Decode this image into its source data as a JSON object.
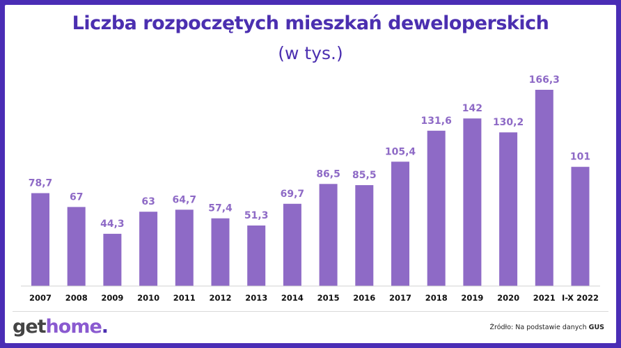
{
  "header": {
    "title": "Liczba rozpoczętych mieszkań deweloperskich",
    "subtitle": "(w tys.)"
  },
  "footer": {
    "logo_part1": "get",
    "logo_part2": "home",
    "logo_part3": ".",
    "source_prefix": "Źródło: Na podstawie danych",
    "source_org": "GUS"
  },
  "colors": {
    "bar": "#8e6ac6",
    "value_label": "#8e6ac6",
    "category_label": "#111111",
    "title": "#4b2fb0",
    "border": "#4a2db5"
  },
  "chart_data": {
    "type": "bar",
    "title": "Liczba rozpoczętych mieszkań deweloperskich",
    "subtitle": "(w tys.)",
    "categories": [
      "2007",
      "2008",
      "2009",
      "2010",
      "2011",
      "2012",
      "2013",
      "2014",
      "2015",
      "2016",
      "2017",
      "2018",
      "2019",
      "2020",
      "2021",
      "I-X 2022"
    ],
    "values": [
      78.7,
      67,
      44.3,
      63,
      64.7,
      57.4,
      51.3,
      69.7,
      86.5,
      85.5,
      105.4,
      131.6,
      142,
      130.2,
      166.3,
      101
    ],
    "value_labels": [
      "78,7",
      "67",
      "44,3",
      "63",
      "64,7",
      "57,4",
      "51,3",
      "69,7",
      "86,5",
      "85,5",
      "105,4",
      "131,6",
      "142",
      "130,2",
      "166,3",
      "101"
    ],
    "ylim": [
      0,
      166.3
    ],
    "grid": false,
    "legend": "none"
  }
}
